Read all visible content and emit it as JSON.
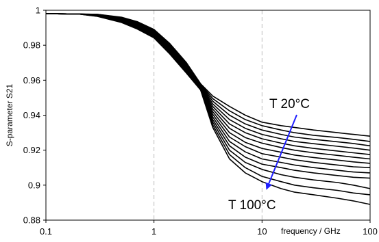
{
  "chart_data": {
    "type": "line",
    "xlabel": "frequency / GHz",
    "ylabel": "S-parameter S21",
    "xscale": "log",
    "xlim": [
      0.1,
      100
    ],
    "ylim": [
      0.88,
      1.0
    ],
    "x_ticks": [
      "0.1",
      "1",
      "10",
      "100"
    ],
    "y_ticks": [
      "0.88",
      "0.9",
      "0.92",
      "0.94",
      "0.96",
      "0.98",
      "1"
    ],
    "grid": "vertical dashed at decades",
    "line_color": "#000000",
    "arrow_color": "#1f1fff",
    "annotations": {
      "top": "T 20°C",
      "bottom": "T 100°C"
    },
    "x": [
      0.1,
      0.2,
      0.3,
      0.5,
      0.7,
      1.0,
      1.4,
      2.0,
      2.7,
      3.5,
      5.0,
      7.0,
      10,
      15,
      20,
      30,
      50,
      70,
      100
    ],
    "series": [
      {
        "values": [
          0.998,
          0.9979,
          0.9977,
          0.996,
          0.9935,
          0.989,
          0.981,
          0.97,
          0.958,
          0.951,
          0.945,
          0.94,
          0.936,
          0.934,
          0.933,
          0.9315,
          0.93,
          0.929,
          0.928
        ]
      },
      {
        "values": [
          0.998,
          0.9979,
          0.9976,
          0.9958,
          0.9932,
          0.9886,
          0.9805,
          0.9695,
          0.9578,
          0.9495,
          0.9425,
          0.9375,
          0.934,
          0.9315,
          0.93,
          0.9285,
          0.9272,
          0.9262,
          0.925
        ]
      },
      {
        "values": [
          0.998,
          0.9979,
          0.9975,
          0.9955,
          0.9928,
          0.9882,
          0.98,
          0.969,
          0.9575,
          0.948,
          0.94,
          0.935,
          0.9315,
          0.929,
          0.9275,
          0.9262,
          0.9248,
          0.9238,
          0.9225
        ]
      },
      {
        "values": [
          0.998,
          0.9979,
          0.9974,
          0.9953,
          0.9925,
          0.9878,
          0.9795,
          0.9685,
          0.9572,
          0.9465,
          0.9375,
          0.9325,
          0.929,
          0.9265,
          0.925,
          0.9237,
          0.9222,
          0.9212,
          0.92
        ]
      },
      {
        "values": [
          0.998,
          0.9979,
          0.9973,
          0.995,
          0.9921,
          0.9874,
          0.979,
          0.968,
          0.9569,
          0.945,
          0.935,
          0.93,
          0.9265,
          0.924,
          0.9225,
          0.921,
          0.9195,
          0.9185,
          0.9175
        ]
      },
      {
        "values": [
          0.998,
          0.9979,
          0.9972,
          0.9948,
          0.9918,
          0.987,
          0.9785,
          0.9675,
          0.9566,
          0.9435,
          0.9325,
          0.9272,
          0.924,
          0.9215,
          0.92,
          0.9185,
          0.917,
          0.916,
          0.915
        ]
      },
      {
        "values": [
          0.998,
          0.9979,
          0.9971,
          0.9945,
          0.9914,
          0.9866,
          0.978,
          0.967,
          0.9563,
          0.942,
          0.93,
          0.9245,
          0.921,
          0.9188,
          0.9172,
          0.9158,
          0.9143,
          0.9133,
          0.9125
        ]
      },
      {
        "values": [
          0.998,
          0.9979,
          0.997,
          0.9943,
          0.9911,
          0.9862,
          0.9775,
          0.9665,
          0.956,
          0.9405,
          0.9275,
          0.922,
          0.918,
          0.916,
          0.9145,
          0.913,
          0.9115,
          0.9105,
          0.91
        ]
      },
      {
        "values": [
          0.998,
          0.9979,
          0.9969,
          0.994,
          0.9907,
          0.9858,
          0.977,
          0.966,
          0.9557,
          0.939,
          0.925,
          0.919,
          0.915,
          0.913,
          0.9115,
          0.91,
          0.9085,
          0.9075,
          0.907
        ]
      },
      {
        "values": [
          0.998,
          0.9979,
          0.9968,
          0.9938,
          0.9904,
          0.9854,
          0.9765,
          0.9655,
          0.9554,
          0.9375,
          0.9225,
          0.916,
          0.912,
          0.91,
          0.9085,
          0.907,
          0.9055,
          0.9045,
          0.904
        ]
      },
      {
        "values": [
          0.998,
          0.9979,
          0.9967,
          0.9935,
          0.99,
          0.985,
          0.976,
          0.965,
          0.955,
          0.936,
          0.92,
          0.913,
          0.909,
          0.906,
          0.9045,
          0.903,
          0.9015,
          0.9,
          0.898
        ]
      },
      {
        "values": [
          0.998,
          0.9979,
          0.9966,
          0.9933,
          0.9897,
          0.9846,
          0.9755,
          0.9645,
          0.9547,
          0.9345,
          0.9175,
          0.91,
          0.905,
          0.902,
          0.9,
          0.8985,
          0.897,
          0.8955,
          0.8945
        ]
      },
      {
        "values": [
          0.998,
          0.9979,
          0.9965,
          0.993,
          0.9893,
          0.9842,
          0.975,
          0.964,
          0.9544,
          0.933,
          0.915,
          0.907,
          0.902,
          0.898,
          0.896,
          0.8945,
          0.8925,
          0.891,
          0.889
        ]
      }
    ]
  }
}
